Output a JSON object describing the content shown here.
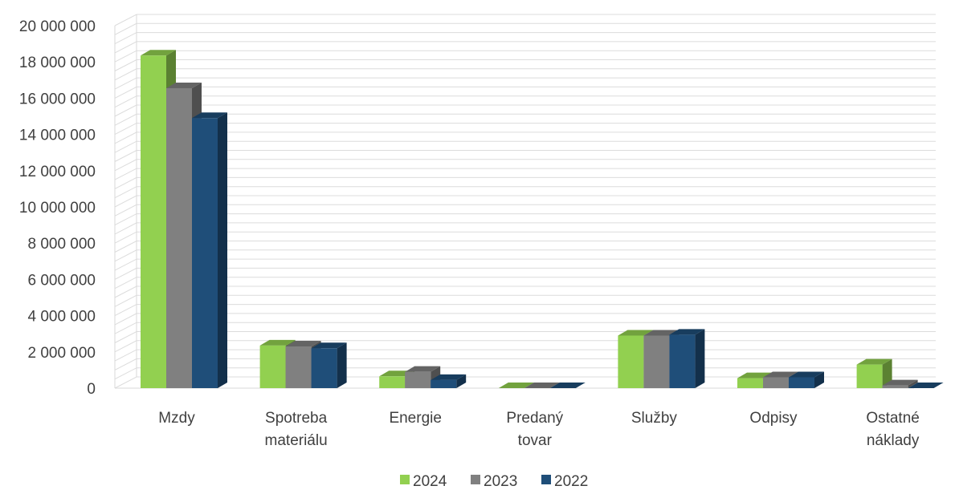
{
  "chart_data": {
    "type": "bar",
    "categories": [
      [
        "Mzdy"
      ],
      [
        "Spotreba",
        "materiálu"
      ],
      [
        "Energie"
      ],
      [
        "Predaný",
        "tovar"
      ],
      [
        "Služby"
      ],
      [
        "Odpisy"
      ],
      [
        "Ostatné",
        "náklady"
      ]
    ],
    "series": [
      {
        "name": "2024",
        "color": "#92d050",
        "values": [
          18350000,
          2350000,
          650000,
          0,
          2900000,
          550000,
          1300000
        ]
      },
      {
        "name": "2023",
        "color": "#808080",
        "values": [
          16550000,
          2300000,
          900000,
          0,
          2900000,
          600000,
          150000
        ]
      },
      {
        "name": "2022",
        "color": "#1f4e79",
        "values": [
          14900000,
          2200000,
          450000,
          0,
          2950000,
          600000,
          0
        ]
      }
    ],
    "y_ticks": [
      "0",
      "2 000 000",
      "4 000 000",
      "6 000 000",
      "8 000 000",
      "10 000 000",
      "12 000 000",
      "14 000 000",
      "16 000 000",
      "18 000 000",
      "20 000 000"
    ],
    "ylim": [
      0,
      20000000
    ],
    "minor_gridlines": true,
    "legend_position": "bottom",
    "style": "3d-clustered-column"
  }
}
